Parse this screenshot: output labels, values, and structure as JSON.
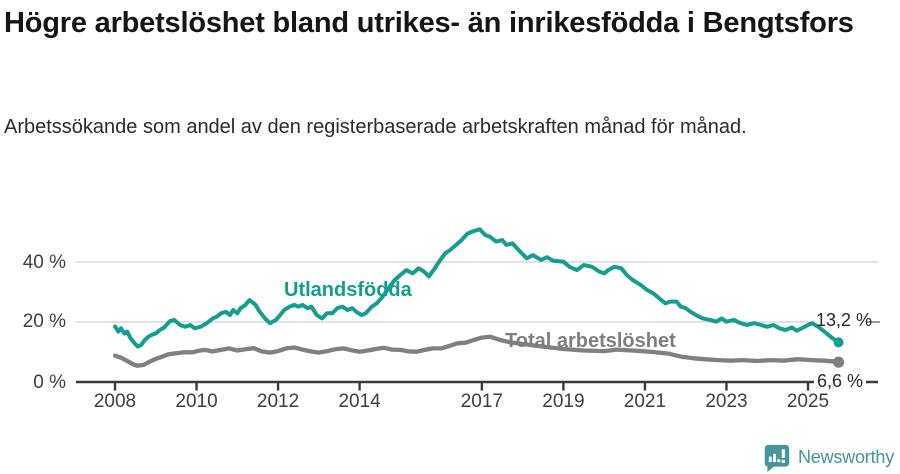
{
  "header": {
    "title": "Högre arbetslöshet bland utrikes- än inrikesfödda i Bengtsfors",
    "subtitle": "Arbetssökande som andel av den registerbaserade arbetskraften månad för månad."
  },
  "chart_data": {
    "type": "line",
    "title": "Högre arbetslöshet bland utrikes- än inrikesfödda i Bengtsfors",
    "xlabel": "",
    "ylabel": "",
    "grid": "horizontal-only",
    "legend_position": "inline-labels-on-lines",
    "x_axis": {
      "ticks": [
        2008,
        2010,
        2012,
        2014,
        2017,
        2019,
        2021,
        2023,
        2025
      ],
      "tick_labels": [
        "2008",
        "2010",
        "2012",
        "2014",
        "2017",
        "2019",
        "2021",
        "2023",
        "2025"
      ],
      "range": [
        2008,
        2026.5
      ]
    },
    "y_axis": {
      "ticks": [
        0,
        20,
        40
      ],
      "tick_labels": [
        "0 %",
        "20 %",
        "40 %"
      ],
      "gridlines": [
        20,
        40
      ],
      "range": [
        0,
        55
      ]
    },
    "series": [
      {
        "key": "utlandsfodda",
        "name": "Utlandsfödda",
        "color": "#149e91",
        "end_label": "13,2 %",
        "end_value": 13.2,
        "points": [
          [
            2008.0,
            18.5
          ],
          [
            2008.08,
            16.8
          ],
          [
            2008.15,
            17.9
          ],
          [
            2008.23,
            16.2
          ],
          [
            2008.3,
            16.8
          ],
          [
            2008.38,
            14.6
          ],
          [
            2008.48,
            12.9
          ],
          [
            2008.56,
            11.8
          ],
          [
            2008.64,
            12.3
          ],
          [
            2008.73,
            14.0
          ],
          [
            2008.82,
            15.1
          ],
          [
            2008.9,
            15.7
          ],
          [
            2009.0,
            16.2
          ],
          [
            2009.1,
            17.3
          ],
          [
            2009.2,
            18.1
          ],
          [
            2009.35,
            20.3
          ],
          [
            2009.45,
            20.7
          ],
          [
            2009.6,
            19.0
          ],
          [
            2009.72,
            18.4
          ],
          [
            2009.85,
            19.0
          ],
          [
            2009.95,
            17.9
          ],
          [
            2010.1,
            18.4
          ],
          [
            2010.25,
            19.6
          ],
          [
            2010.4,
            21.2
          ],
          [
            2010.5,
            21.8
          ],
          [
            2010.6,
            22.9
          ],
          [
            2010.72,
            23.4
          ],
          [
            2010.82,
            22.3
          ],
          [
            2010.9,
            24.0
          ],
          [
            2011.0,
            22.9
          ],
          [
            2011.08,
            24.6
          ],
          [
            2011.2,
            25.7
          ],
          [
            2011.3,
            27.3
          ],
          [
            2011.45,
            25.7
          ],
          [
            2011.55,
            23.4
          ],
          [
            2011.68,
            21.2
          ],
          [
            2011.8,
            19.6
          ],
          [
            2011.95,
            20.7
          ],
          [
            2012.05,
            22.3
          ],
          [
            2012.15,
            24.0
          ],
          [
            2012.28,
            25.1
          ],
          [
            2012.4,
            25.7
          ],
          [
            2012.5,
            25.1
          ],
          [
            2012.6,
            25.7
          ],
          [
            2012.72,
            24.6
          ],
          [
            2012.82,
            25.1
          ],
          [
            2012.95,
            22.3
          ],
          [
            2013.08,
            21.2
          ],
          [
            2013.2,
            22.9
          ],
          [
            2013.33,
            22.9
          ],
          [
            2013.45,
            24.6
          ],
          [
            2013.58,
            25.1
          ],
          [
            2013.7,
            24.0
          ],
          [
            2013.82,
            24.6
          ],
          [
            2013.92,
            23.4
          ],
          [
            2014.05,
            22.3
          ],
          [
            2014.15,
            22.9
          ],
          [
            2014.3,
            25.1
          ],
          [
            2014.42,
            26.2
          ],
          [
            2014.55,
            28.2
          ],
          [
            2014.7,
            31.0
          ],
          [
            2014.85,
            33.8
          ],
          [
            2015.0,
            35.7
          ],
          [
            2015.15,
            37.3
          ],
          [
            2015.3,
            36.2
          ],
          [
            2015.45,
            37.9
          ],
          [
            2015.58,
            36.8
          ],
          [
            2015.7,
            35.2
          ],
          [
            2015.85,
            38.0
          ],
          [
            2015.95,
            40.1
          ],
          [
            2016.1,
            42.9
          ],
          [
            2016.22,
            44.0
          ],
          [
            2016.35,
            45.5
          ],
          [
            2016.5,
            47.3
          ],
          [
            2016.65,
            49.5
          ],
          [
            2016.8,
            50.3
          ],
          [
            2016.95,
            50.9
          ],
          [
            2017.08,
            49.0
          ],
          [
            2017.2,
            48.4
          ],
          [
            2017.35,
            46.8
          ],
          [
            2017.5,
            47.3
          ],
          [
            2017.6,
            45.7
          ],
          [
            2017.75,
            46.2
          ],
          [
            2017.9,
            44.0
          ],
          [
            2018.1,
            41.2
          ],
          [
            2018.25,
            42.3
          ],
          [
            2018.45,
            40.7
          ],
          [
            2018.6,
            41.6
          ],
          [
            2018.75,
            40.4
          ],
          [
            2019.0,
            40.1
          ],
          [
            2019.15,
            38.4
          ],
          [
            2019.33,
            37.3
          ],
          [
            2019.5,
            39.0
          ],
          [
            2019.7,
            38.4
          ],
          [
            2019.88,
            36.8
          ],
          [
            2020.0,
            36.2
          ],
          [
            2020.1,
            37.3
          ],
          [
            2020.25,
            38.4
          ],
          [
            2020.42,
            37.9
          ],
          [
            2020.55,
            35.7
          ],
          [
            2020.7,
            34.0
          ],
          [
            2020.9,
            32.3
          ],
          [
            2021.05,
            30.7
          ],
          [
            2021.2,
            29.6
          ],
          [
            2021.35,
            27.9
          ],
          [
            2021.5,
            26.2
          ],
          [
            2021.62,
            26.8
          ],
          [
            2021.78,
            26.8
          ],
          [
            2021.88,
            25.1
          ],
          [
            2022.0,
            24.6
          ],
          [
            2022.12,
            23.4
          ],
          [
            2022.25,
            22.3
          ],
          [
            2022.42,
            21.2
          ],
          [
            2022.6,
            20.7
          ],
          [
            2022.75,
            20.1
          ],
          [
            2022.88,
            21.2
          ],
          [
            2023.0,
            20.1
          ],
          [
            2023.18,
            20.7
          ],
          [
            2023.35,
            19.6
          ],
          [
            2023.5,
            19.0
          ],
          [
            2023.68,
            19.6
          ],
          [
            2023.85,
            19.0
          ],
          [
            2024.0,
            18.4
          ],
          [
            2024.15,
            19.0
          ],
          [
            2024.3,
            17.9
          ],
          [
            2024.45,
            17.3
          ],
          [
            2024.6,
            18.2
          ],
          [
            2024.72,
            17.1
          ],
          [
            2024.85,
            17.9
          ],
          [
            2025.0,
            19.0
          ],
          [
            2025.1,
            19.6
          ],
          [
            2025.25,
            18.4
          ],
          [
            2025.4,
            16.8
          ],
          [
            2025.5,
            15.7
          ],
          [
            2025.6,
            14.6
          ],
          [
            2025.75,
            13.2
          ]
        ]
      },
      {
        "key": "total",
        "name": "Total arbetslöshet",
        "color": "#808080",
        "end_label": "6,6 %",
        "end_value": 6.6,
        "points": [
          [
            2008.0,
            8.8
          ],
          [
            2008.15,
            8.1
          ],
          [
            2008.3,
            7.0
          ],
          [
            2008.45,
            5.9
          ],
          [
            2008.55,
            5.4
          ],
          [
            2008.7,
            5.7
          ],
          [
            2008.85,
            6.8
          ],
          [
            2009.0,
            7.7
          ],
          [
            2009.15,
            8.4
          ],
          [
            2009.3,
            9.2
          ],
          [
            2009.5,
            9.6
          ],
          [
            2009.7,
            9.9
          ],
          [
            2009.9,
            9.9
          ],
          [
            2010.05,
            10.4
          ],
          [
            2010.2,
            10.7
          ],
          [
            2010.4,
            10.2
          ],
          [
            2010.6,
            10.7
          ],
          [
            2010.8,
            11.2
          ],
          [
            2011.0,
            10.5
          ],
          [
            2011.2,
            10.9
          ],
          [
            2011.4,
            11.3
          ],
          [
            2011.6,
            10.2
          ],
          [
            2011.8,
            9.8
          ],
          [
            2012.0,
            10.3
          ],
          [
            2012.2,
            11.2
          ],
          [
            2012.4,
            11.5
          ],
          [
            2012.6,
            10.8
          ],
          [
            2012.8,
            10.2
          ],
          [
            2013.0,
            9.8
          ],
          [
            2013.2,
            10.3
          ],
          [
            2013.4,
            10.9
          ],
          [
            2013.6,
            11.2
          ],
          [
            2013.8,
            10.6
          ],
          [
            2014.0,
            10.1
          ],
          [
            2014.2,
            10.5
          ],
          [
            2014.4,
            11.0
          ],
          [
            2014.6,
            11.4
          ],
          [
            2014.8,
            10.8
          ],
          [
            2015.0,
            10.7
          ],
          [
            2015.2,
            10.2
          ],
          [
            2015.4,
            10.1
          ],
          [
            2015.6,
            10.7
          ],
          [
            2015.8,
            11.2
          ],
          [
            2016.0,
            11.2
          ],
          [
            2016.2,
            12.0
          ],
          [
            2016.4,
            12.9
          ],
          [
            2016.6,
            13.1
          ],
          [
            2016.8,
            14.0
          ],
          [
            2017.0,
            14.8
          ],
          [
            2017.2,
            15.1
          ],
          [
            2017.45,
            14.0
          ],
          [
            2017.7,
            13.2
          ],
          [
            2018.1,
            12.5
          ],
          [
            2018.5,
            11.8
          ],
          [
            2019.0,
            11.0
          ],
          [
            2019.5,
            10.5
          ],
          [
            2020.0,
            10.3
          ],
          [
            2020.3,
            10.8
          ],
          [
            2020.8,
            10.4
          ],
          [
            2021.2,
            10.0
          ],
          [
            2021.6,
            9.4
          ],
          [
            2021.9,
            8.4
          ],
          [
            2022.2,
            7.9
          ],
          [
            2022.45,
            7.6
          ],
          [
            2022.8,
            7.3
          ],
          [
            2023.1,
            7.1
          ],
          [
            2023.4,
            7.3
          ],
          [
            2023.75,
            7.0
          ],
          [
            2024.1,
            7.3
          ],
          [
            2024.4,
            7.1
          ],
          [
            2024.75,
            7.6
          ],
          [
            2025.1,
            7.3
          ],
          [
            2025.4,
            7.1
          ],
          [
            2025.6,
            6.9
          ],
          [
            2025.75,
            6.6
          ]
        ]
      }
    ]
  },
  "branding": {
    "logo_text": "Newsworthy",
    "logo_icon": "newsworthy-speech-bubble-bar-chart",
    "logo_color": "#45959b"
  }
}
